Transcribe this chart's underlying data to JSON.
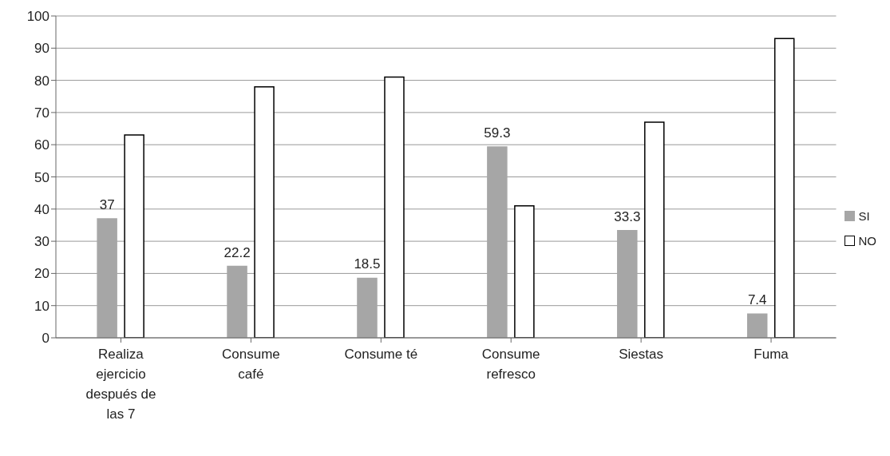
{
  "chart_data": {
    "type": "bar",
    "categories": [
      "Realiza ejercicio después de las 7",
      "Consume café",
      "Consume té",
      "Consume refresco",
      "Siestas",
      "Fuma"
    ],
    "series": [
      {
        "name": "SI",
        "color": "#a6a6a6",
        "values": [
          37,
          22.2,
          18.5,
          59.3,
          33.3,
          7.4
        ],
        "value_labels": [
          "37",
          "22.2",
          "18.5",
          "59.3",
          "33.3",
          "7.4"
        ]
      },
      {
        "name": "NO",
        "color": "#ffffff",
        "values": [
          63,
          78,
          81,
          41,
          67,
          93
        ]
      }
    ],
    "ylim": [
      0,
      100
    ],
    "yticks": [
      0,
      10,
      20,
      30,
      40,
      50,
      60,
      70,
      80,
      90,
      100
    ],
    "grid": "y",
    "legend": "right"
  }
}
